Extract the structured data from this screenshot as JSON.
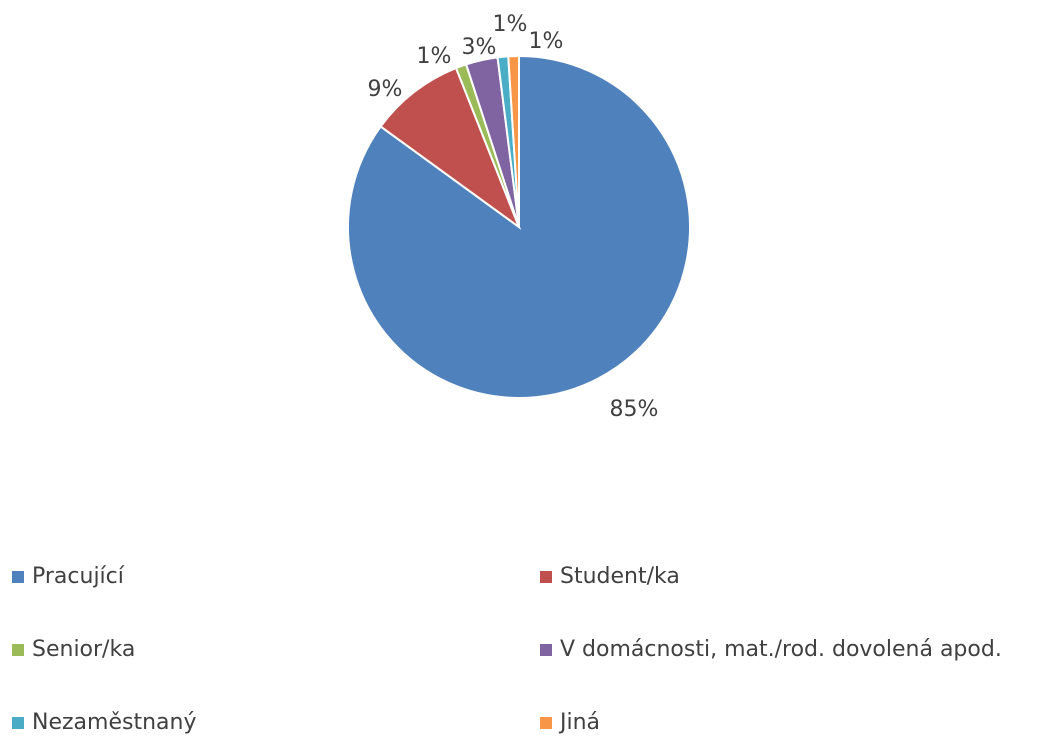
{
  "chart_data": {
    "type": "pie",
    "categories": [
      "Pracující",
      "Student/ka",
      "Senior/ka",
      "V domácnosti, mat./rod. dovolená apod.",
      "Nezaměstnaný",
      "Jiná"
    ],
    "values": [
      85,
      9,
      1,
      3,
      1,
      1
    ],
    "value_labels": [
      "85%",
      "9%",
      "1%",
      "3%",
      "1%",
      "1%"
    ],
    "colors": [
      "#4f81bd",
      "#c0504d",
      "#9bbb59",
      "#8064a2",
      "#4bacc6",
      "#f79646"
    ],
    "legend": "bottom"
  }
}
